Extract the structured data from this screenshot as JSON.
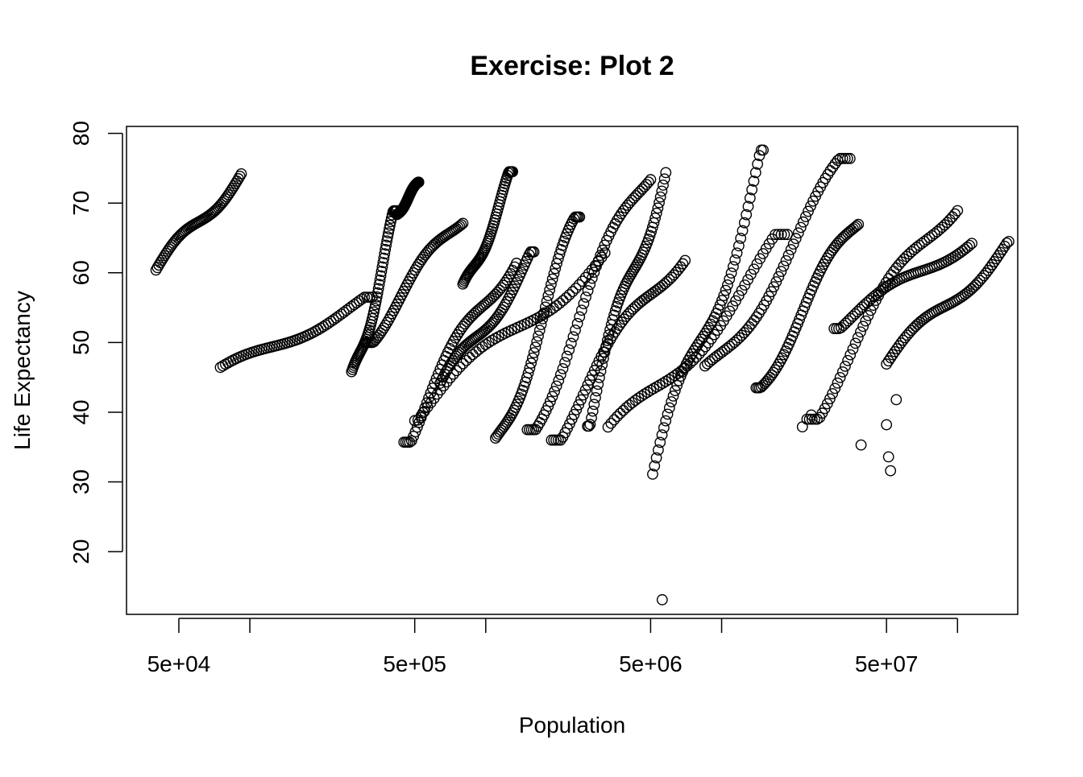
{
  "chart_data": {
    "type": "scatter",
    "title": "Exercise: Plot 2",
    "xlabel": "Population",
    "ylabel": "Life Expectancy",
    "x_scale": "log",
    "xlim": [
      30000,
      180000000
    ],
    "ylim": [
      11,
      81
    ],
    "x_ticks": [
      {
        "value": 50000,
        "label": "5e+04"
      },
      {
        "value": 100000,
        "label": ""
      },
      {
        "value": 500000,
        "label": "5e+05"
      },
      {
        "value": 1000000,
        "label": ""
      },
      {
        "value": 5000000,
        "label": "5e+06"
      },
      {
        "value": 10000000,
        "label": ""
      },
      {
        "value": 50000000,
        "label": "5e+07"
      },
      {
        "value": 100000000,
        "label": ""
      }
    ],
    "y_ticks": [
      {
        "value": 20,
        "label": "20"
      },
      {
        "value": 30,
        "label": "30"
      },
      {
        "value": 40,
        "label": "40"
      },
      {
        "value": 50,
        "label": "50"
      },
      {
        "value": 60,
        "label": "60"
      },
      {
        "value": 70,
        "label": "70"
      },
      {
        "value": 80,
        "label": "80"
      }
    ],
    "grid": false,
    "marker": "open-circle",
    "marker_color": "#000000",
    "trajectories": [
      {
        "start": [
          40000,
          60.4
        ],
        "end": [
          92000,
          74.2
        ]
      },
      {
        "start": [
          75000,
          45.7
        ],
        "end": [
          330000,
          56.5
        ]
      },
      {
        "start": [
          270000,
          44.0
        ],
        "end": [
          420000,
          68.9
        ]
      },
      {
        "start": [
          420000,
          68.3
        ],
        "end": [
          520000,
          73.0
        ]
      },
      {
        "start": [
          310000,
          50.0
        ],
        "end": [
          800000,
          68.2
        ]
      },
      {
        "start": [
          450000,
          35.7
        ],
        "end": [
          1350000,
          63.5
        ]
      },
      {
        "start": [
          500000,
          38.8
        ],
        "end": [
          3200000,
          63.4
        ]
      },
      {
        "start": [
          640000,
          43.1
        ],
        "end": [
          1600000,
          63.0
        ]
      },
      {
        "start": [
          800000,
          57.0
        ],
        "end": [
          1300000,
          74.5
        ]
      },
      {
        "start": [
          1100000,
          35.2
        ],
        "end": [
          2500000,
          68.0
        ]
      },
      {
        "start": [
          1500000,
          37.5
        ],
        "end": [
          5000000,
          75.0
        ]
      },
      {
        "start": [
          1900000,
          36.0
        ],
        "end": [
          7000000,
          64.0
        ]
      },
      {
        "start": [
          2700000,
          38.0
        ],
        "end": [
          5800000,
          76.0
        ]
      },
      {
        "start": [
          5100000,
          29.5
        ],
        "end": [
          15000000,
          77.6
        ]
      },
      {
        "start": [
          3300000,
          35.5
        ],
        "end": [
          19000000,
          65.5
        ]
      },
      {
        "start": [
          8500000,
          45.0
        ],
        "end": [
          35000000,
          76.4
        ]
      },
      {
        "start": [
          14000000,
          43.5
        ],
        "end": [
          38000000,
          67.5
        ]
      },
      {
        "start": [
          23000000,
          39.0
        ],
        "end": [
          100000000,
          71.4
        ]
      },
      {
        "start": [
          30000000,
          52.0
        ],
        "end": [
          115000000,
          65.0
        ]
      },
      {
        "start": [
          50000000,
          46.7
        ],
        "end": [
          165000000,
          64.5
        ]
      }
    ],
    "outliers": [
      {
        "x": 5600000,
        "y": 13.1
      },
      {
        "x": 52000000,
        "y": 31.6
      },
      {
        "x": 51000000,
        "y": 33.6
      },
      {
        "x": 55000000,
        "y": 41.8
      },
      {
        "x": 39000000,
        "y": 35.3
      },
      {
        "x": 50000000,
        "y": 38.2
      },
      {
        "x": 24000000,
        "y": 39.6
      },
      {
        "x": 22000000,
        "y": 37.9
      }
    ]
  }
}
